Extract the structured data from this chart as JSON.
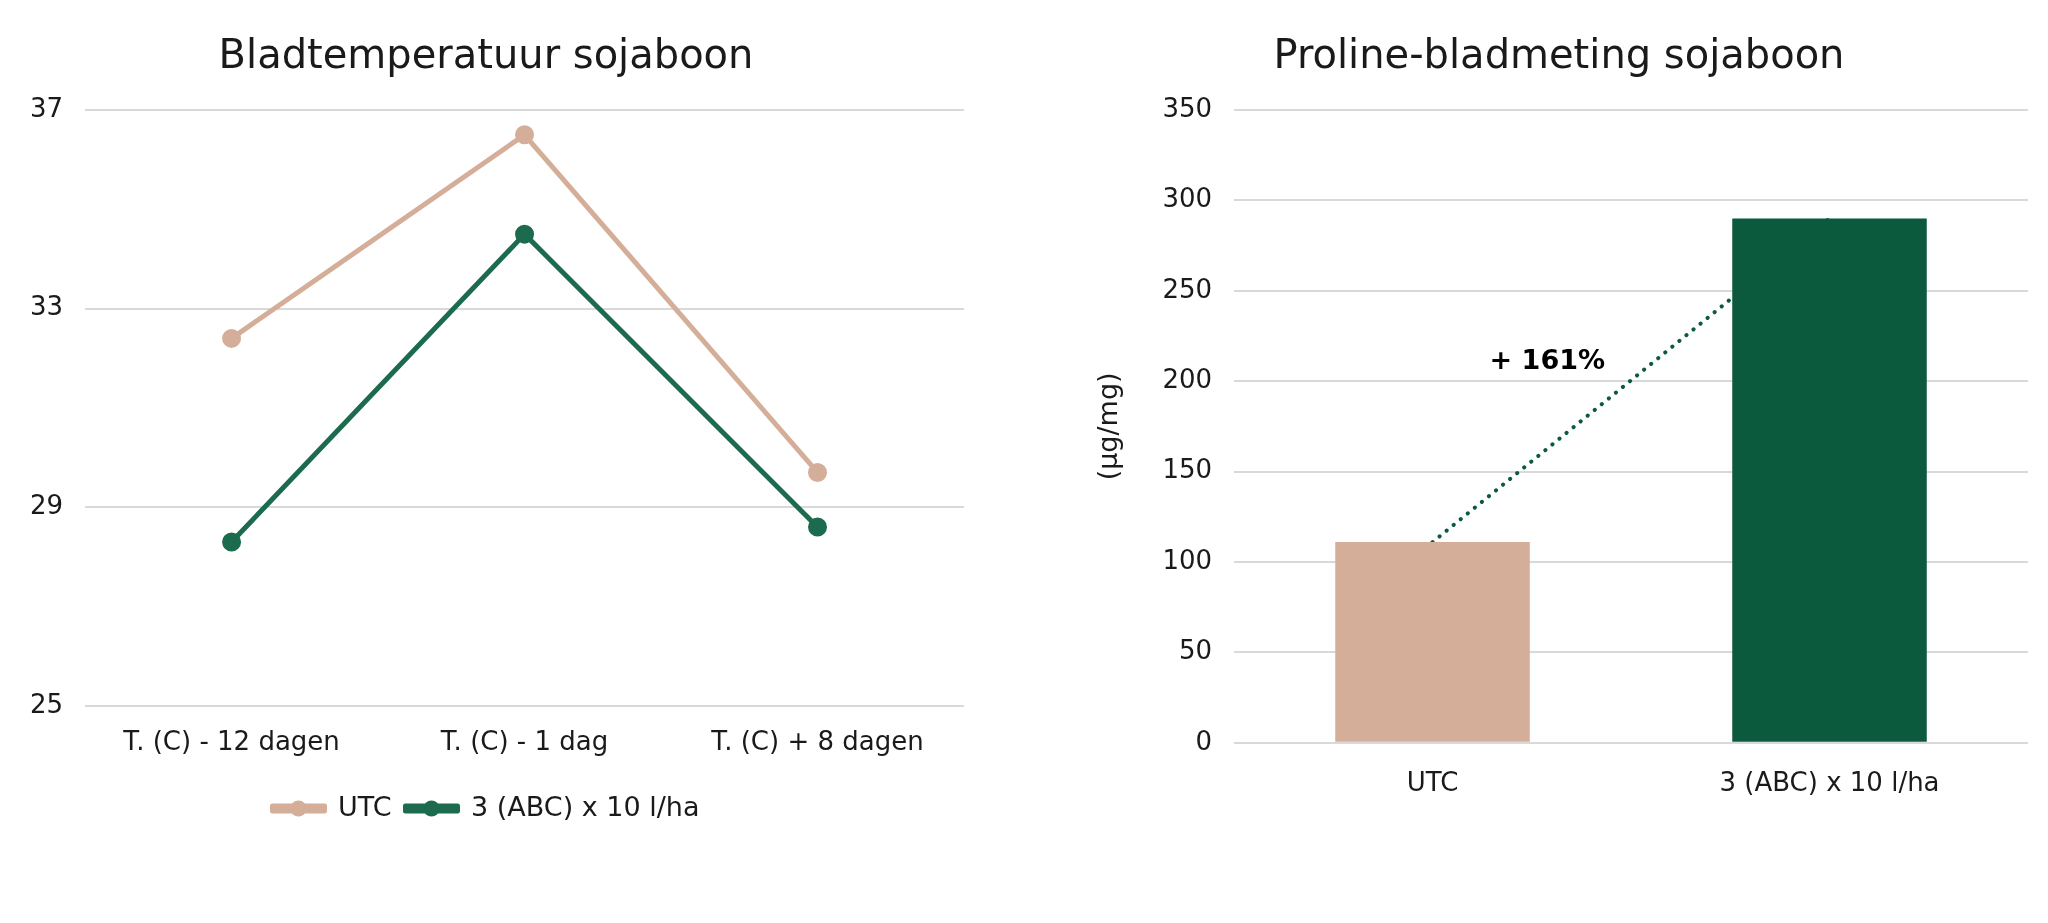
{
  "chart_data": [
    {
      "type": "line",
      "title": "Bladtemperatuur sojaboon",
      "categories": [
        "T. (C) - 12 dagen",
        "T. (C) - 1 dag",
        "T. (C) + 8 dagen"
      ],
      "series": [
        {
          "name": "UTC",
          "color": "#d4ae98",
          "values": [
            32.4,
            36.5,
            29.7
          ]
        },
        {
          "name": "3 (ABC) x 10 l/ha",
          "color": "#1d6b4e",
          "values": [
            28.3,
            34.5,
            28.6
          ]
        }
      ],
      "ylim": [
        25,
        37
      ],
      "yticks": [
        25,
        29,
        33,
        37
      ],
      "grid": "y",
      "legend": "bottom",
      "marker": "circle",
      "line_style": "solid"
    },
    {
      "type": "bar",
      "title": "Proline-bladmeting sojaboon",
      "ylabel": "(µg/mg)",
      "categories": [
        "UTC",
        "3 (ABC) x 10 l/ha"
      ],
      "values": [
        111,
        290
      ],
      "colors": [
        "#d4ae98",
        "#0b5a3e"
      ],
      "ylim": [
        0,
        350
      ],
      "yticks": [
        0,
        50,
        100,
        150,
        200,
        250,
        300,
        350
      ],
      "grid": "y",
      "annotations": [
        "+ 161%"
      ]
    }
  ]
}
